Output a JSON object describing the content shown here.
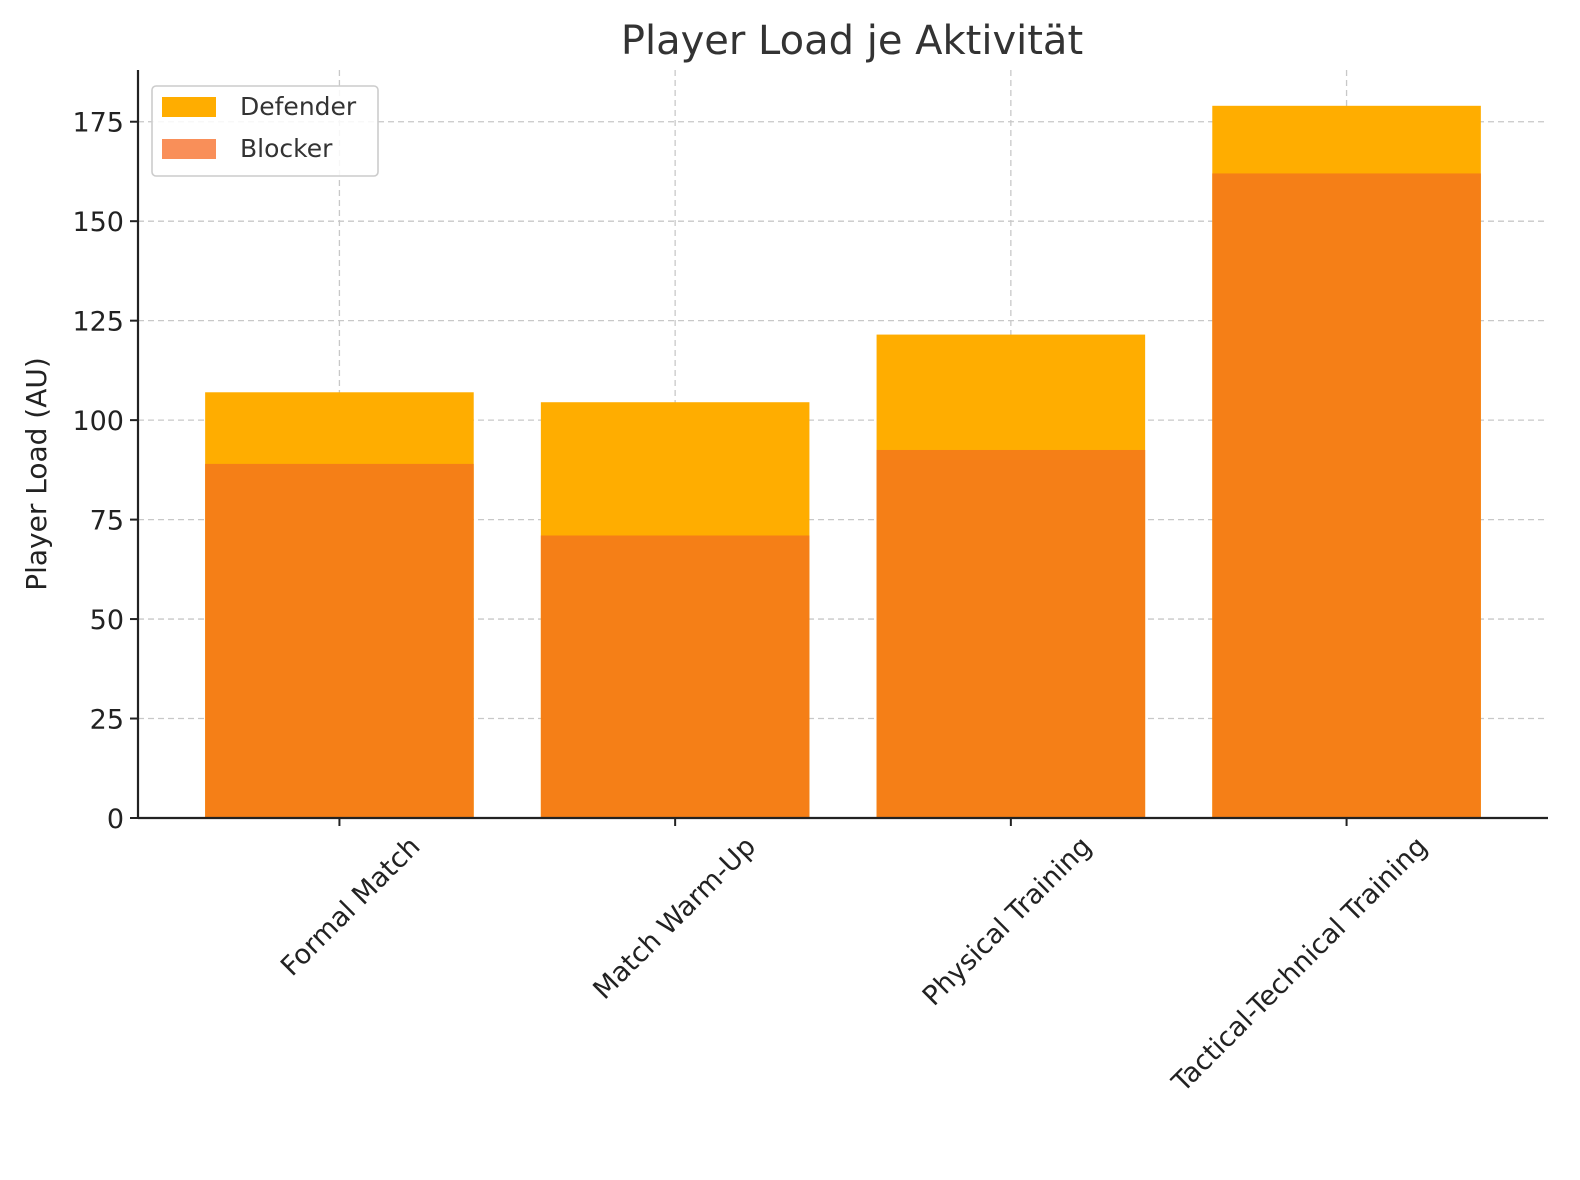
{
  "chart_data": {
    "type": "bar",
    "stacked": false,
    "overlay": true,
    "title": "Player Load je Aktivität",
    "xlabel": "",
    "ylabel": "Player Load (AU)",
    "categories": [
      "Formal Match",
      "Match Warm-Up",
      "Physical Training",
      "Tactical-Technical Training"
    ],
    "series": [
      {
        "name": "Defender",
        "color": "#ffad00",
        "values": [
          107,
          104.5,
          121.5,
          179
        ]
      },
      {
        "name": "Blocker",
        "color": "#f98f59",
        "values": [
          89,
          71,
          92.5,
          162
        ]
      }
    ],
    "overlap_color": "#f57f17",
    "ylim": [
      0,
      188
    ],
    "yticks": [
      0,
      25,
      50,
      75,
      100,
      125,
      150,
      175
    ],
    "grid": true,
    "legend_position": "top-left"
  }
}
